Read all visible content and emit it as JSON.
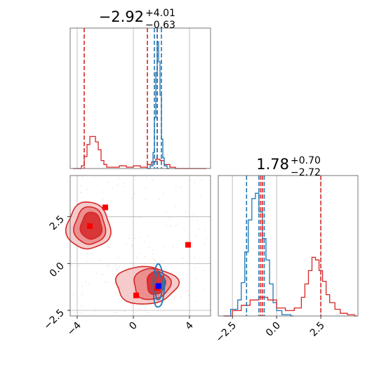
{
  "colors": {
    "red": "#d62728",
    "blue": "#1f77b4",
    "marker_red": "#ff0000",
    "marker_blue": "#0000ff",
    "grid": "#b0b0b0",
    "fill_light": "#f2b0b0",
    "fill_dark": "#d62728"
  },
  "chart_data": [
    {
      "panel": "marginal-x",
      "type": "histogram",
      "title": {
        "main": "−2.92",
        "sup": "+4.01",
        "sub": "−0.63"
      },
      "xlim": [
        -4.5,
        5.5
      ],
      "grid": true,
      "series": [
        {
          "color": "#d62728",
          "x": [
            -4.3,
            -3.7,
            -3.5,
            -3.3,
            -3.1,
            -2.9,
            -2.7,
            -2.5,
            -2.3,
            -2.1,
            -1.9,
            -1.5,
            -1.0,
            -0.5,
            0,
            0.5,
            1.0,
            1.3,
            1.6,
            1.9,
            2.2,
            2.6,
            3.0,
            4.0,
            5.0
          ],
          "density": [
            0.0,
            0.02,
            0.09,
            0.18,
            0.24,
            0.24,
            0.2,
            0.14,
            0.06,
            0.03,
            0.01,
            0.01,
            0.02,
            0.01,
            0.02,
            0.01,
            0.03,
            0.05,
            0.07,
            0.06,
            0.03,
            0.01,
            0.0,
            0.0,
            0.0
          ]
        },
        {
          "color": "#1f77b4",
          "x": [
            1.0,
            1.2,
            1.4,
            1.5,
            1.6,
            1.7,
            1.8,
            1.9,
            2.0,
            2.1,
            2.2,
            2.4
          ],
          "density": [
            0.0,
            0.02,
            0.12,
            0.38,
            0.72,
            0.95,
            0.8,
            0.55,
            0.22,
            0.08,
            0.02,
            0.0
          ]
        }
      ],
      "vlines_red": [
        -3.5,
        1.0,
        1.7
      ],
      "vlines_blue": [
        1.5,
        1.7,
        2.0
      ]
    },
    {
      "panel": "marginal-y",
      "type": "histogram",
      "title": {
        "main": "1.78",
        "sup": "+0.70",
        "sub": "−2.72"
      },
      "xlim": [
        -3.3,
        4.6
      ],
      "xticks": [
        "−2.5",
        "0.0",
        "2.5"
      ],
      "grid": true,
      "series": [
        {
          "color": "#1f77b4",
          "x": [
            -3.0,
            -2.6,
            -2.2,
            -2.0,
            -1.8,
            -1.6,
            -1.4,
            -1.2,
            -1.0,
            -0.8,
            -0.6,
            -0.4,
            -0.2,
            0.0,
            0.3,
            0.8
          ],
          "density": [
            0.0,
            0.05,
            0.12,
            0.25,
            0.48,
            0.72,
            0.88,
            0.92,
            0.78,
            0.58,
            0.42,
            0.24,
            0.1,
            0.04,
            0.01,
            0.0
          ]
        },
        {
          "color": "#d62728",
          "x": [
            -3.0,
            -2.5,
            -2.0,
            -1.5,
            -1.0,
            -0.5,
            0,
            0.5,
            1.0,
            1.4,
            1.6,
            1.8,
            2.0,
            2.2,
            2.4,
            2.6,
            2.8,
            3.0,
            3.3,
            3.6,
            4.0,
            4.4
          ],
          "density": [
            0.0,
            0.04,
            0.08,
            0.12,
            0.14,
            0.12,
            0.06,
            0.04,
            0.06,
            0.14,
            0.24,
            0.34,
            0.44,
            0.42,
            0.34,
            0.26,
            0.16,
            0.1,
            0.05,
            0.02,
            0.01,
            0.0
          ]
        }
      ],
      "vlines_red": [
        -0.9,
        -0.8,
        2.5
      ],
      "vlines_blue": [
        -1.7,
        -1.0,
        -0.7
      ]
    },
    {
      "panel": "joint",
      "type": "contour",
      "xlim": [
        -4.5,
        5.5
      ],
      "ylim": [
        -2.8,
        4.7
      ],
      "xticks": [
        "−4",
        "0",
        "4"
      ],
      "yticks": [
        "−2.5",
        "0.0",
        "2.5"
      ],
      "grid": true,
      "red_contours": [
        {
          "level": 0.2,
          "cx": -3.2,
          "cy": 2.0,
          "rx": 1.55,
          "ry": 1.25
        },
        {
          "level": 0.5,
          "cx": -3.1,
          "cy": 2.0,
          "rx": 1.1,
          "ry": 1.0
        },
        {
          "level": 0.8,
          "cx": -3.0,
          "cy": 2.0,
          "rx": 0.75,
          "ry": 0.72
        },
        {
          "level": 0.2,
          "cx": 0.9,
          "cy": -1.15,
          "rx": 2.2,
          "ry": 1.0
        },
        {
          "level": 0.5,
          "cx": 1.3,
          "cy": -1.1,
          "rx": 1.3,
          "ry": 0.82
        },
        {
          "level": 0.8,
          "cx": 1.6,
          "cy": -1.05,
          "rx": 0.65,
          "ry": 0.6
        }
      ],
      "blue_contours": [
        {
          "level": 0.5,
          "cx": 1.8,
          "cy": -1.2,
          "rx": 0.4,
          "ry": 1.15
        },
        {
          "level": 0.8,
          "cx": 1.8,
          "cy": -1.2,
          "rx": 0.25,
          "ry": 0.75
        }
      ],
      "markers_red": [
        [
          -2.0,
          3.0
        ],
        [
          -3.1,
          2.0
        ],
        [
          3.9,
          1.0
        ],
        [
          0.2,
          -1.7
        ],
        [
          1.7,
          -1.3
        ]
      ],
      "markers_blue": [
        [
          1.8,
          -1.2
        ]
      ]
    }
  ]
}
